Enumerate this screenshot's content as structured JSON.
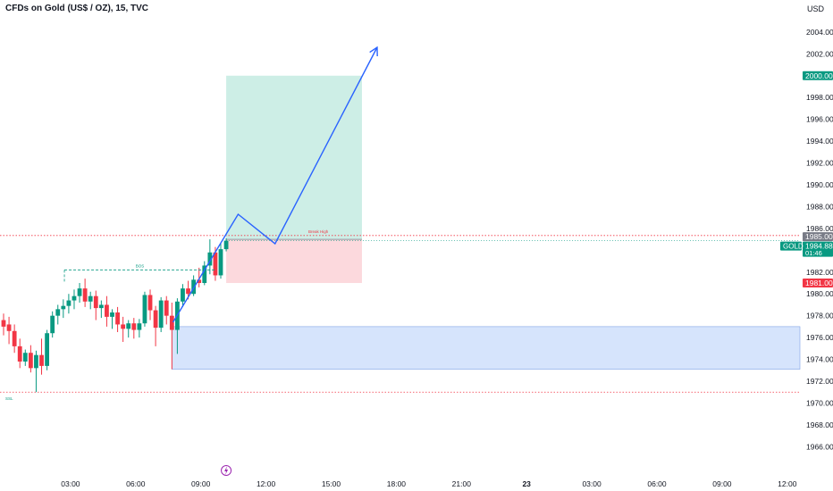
{
  "header": {
    "symbol_title": "CFDs on Gold (US$ / OZ), 15, TVC",
    "currency": "USD"
  },
  "colors": {
    "up": "#089981",
    "down": "#f23645",
    "tp_zone": "#cdeee6",
    "sl_zone": "#fcd9dd",
    "demand_zone": "#d6e4fc",
    "demand_border": "#7fa2e6",
    "arrow": "#2962ff",
    "level_line": "#f23645",
    "bos_line": "#089981"
  },
  "chart_data": {
    "type": "candlestick",
    "instrument": "GOLD",
    "timeframe": "15",
    "y_axis": {
      "ticks": [
        "2004.00",
        "2002.00",
        "2000.00",
        "1998.00",
        "1996.00",
        "1994.00",
        "1992.00",
        "1990.00",
        "1988.00",
        "1986.00",
        "1984.00",
        "1982.00",
        "1980.00",
        "1978.00",
        "1976.00",
        "1974.00",
        "1972.00",
        "1970.00",
        "1968.00",
        "1966.00"
      ],
      "range": [
        1964.8,
        2005.3
      ]
    },
    "x_axis": {
      "ticks": [
        "03:00",
        "06:00",
        "09:00",
        "12:00",
        "15:00",
        "18:00",
        "21:00",
        "23",
        "03:00",
        "06:00",
        "09:00",
        "12:00"
      ],
      "tick_hours": [
        3,
        6,
        9,
        12,
        15,
        18,
        21,
        24,
        27,
        30,
        33,
        36
      ]
    },
    "price_labels": [
      {
        "name": "take-profit",
        "label": "2000.00",
        "value": 2000.0,
        "color": "#089981"
      },
      {
        "name": "entry",
        "label": "1985.00",
        "value": 1985.0,
        "color": "#787b86"
      },
      {
        "name": "current",
        "label": "1984.88",
        "value": 1984.88,
        "color": "#089981",
        "symbol": "GOLD",
        "countdown": "01:46"
      },
      {
        "name": "stop-loss",
        "label": "1981.00",
        "value": 1981.0,
        "color": "#f23645"
      }
    ],
    "annotations": {
      "bos_label": "BOS",
      "bos_level": 1982.2,
      "bos_from_hour": 2.8,
      "bos_to_hour": 9.75,
      "swing_high_label": "Break High",
      "swing_high_level": 1985.35,
      "lower_level": 1971.0,
      "lower_level_label": "SSL",
      "demand_zone": {
        "top": 1977.0,
        "bottom": 1973.1,
        "from_hour": 7.75
      },
      "position": {
        "from_hour": 10.25,
        "to_hour": 16.5,
        "entry": 1985.0,
        "target": 2000.0,
        "stop": 1981.0
      },
      "projection_path": [
        [
          7.8,
          1977.4
        ],
        [
          10.8,
          1987.3
        ],
        [
          12.5,
          1984.6
        ],
        [
          17.2,
          2002.6
        ]
      ],
      "event_marker_hour": 10.25
    },
    "candles": [
      {
        "t": 0.0,
        "o": 1977.6,
        "h": 1978.2,
        "c": 1977.0,
        "l": 1976.2
      },
      {
        "t": 0.25,
        "o": 1977.2,
        "h": 1977.9,
        "c": 1976.6,
        "l": 1975.4
      },
      {
        "t": 0.5,
        "o": 1976.6,
        "h": 1977.2,
        "c": 1975.2,
        "l": 1974.6
      },
      {
        "t": 0.75,
        "o": 1975.2,
        "h": 1975.9,
        "c": 1973.8,
        "l": 1973.2
      },
      {
        "t": 1.0,
        "o": 1973.8,
        "h": 1974.9,
        "c": 1974.6,
        "l": 1973.4
      },
      {
        "t": 1.25,
        "o": 1974.6,
        "h": 1975.3,
        "c": 1973.2,
        "l": 1972.8
      },
      {
        "t": 1.5,
        "o": 1973.2,
        "h": 1974.8,
        "c": 1974.4,
        "l": 1971.0
      },
      {
        "t": 1.75,
        "o": 1974.4,
        "h": 1975.9,
        "c": 1973.4,
        "l": 1972.6
      },
      {
        "t": 2.0,
        "o": 1973.4,
        "h": 1976.7,
        "c": 1976.4,
        "l": 1973.0
      },
      {
        "t": 2.25,
        "o": 1976.4,
        "h": 1978.4,
        "c": 1978.0,
        "l": 1976.0
      },
      {
        "t": 2.5,
        "o": 1978.0,
        "h": 1979.0,
        "c": 1978.6,
        "l": 1977.2
      },
      {
        "t": 2.75,
        "o": 1978.6,
        "h": 1979.5,
        "c": 1978.9,
        "l": 1977.8
      },
      {
        "t": 3.0,
        "o": 1978.9,
        "h": 1980.0,
        "c": 1979.4,
        "l": 1978.2
      },
      {
        "t": 3.25,
        "o": 1979.4,
        "h": 1980.4,
        "c": 1979.8,
        "l": 1978.6
      },
      {
        "t": 3.5,
        "o": 1979.8,
        "h": 1981.0,
        "c": 1980.5,
        "l": 1979.2
      },
      {
        "t": 3.75,
        "o": 1980.5,
        "h": 1981.4,
        "c": 1979.3,
        "l": 1978.8
      },
      {
        "t": 4.0,
        "o": 1979.3,
        "h": 1980.2,
        "c": 1979.8,
        "l": 1978.6
      },
      {
        "t": 4.25,
        "o": 1979.8,
        "h": 1980.3,
        "c": 1978.7,
        "l": 1977.6
      },
      {
        "t": 4.5,
        "o": 1978.7,
        "h": 1979.4,
        "c": 1979.0,
        "l": 1977.8
      },
      {
        "t": 4.75,
        "o": 1979.0,
        "h": 1979.8,
        "c": 1977.9,
        "l": 1977.0
      },
      {
        "t": 5.0,
        "o": 1977.9,
        "h": 1978.6,
        "c": 1978.3,
        "l": 1976.8
      },
      {
        "t": 5.25,
        "o": 1978.3,
        "h": 1978.8,
        "c": 1977.2,
        "l": 1976.5
      },
      {
        "t": 5.5,
        "o": 1977.2,
        "h": 1977.9,
        "c": 1976.8,
        "l": 1975.6
      },
      {
        "t": 5.75,
        "o": 1976.8,
        "h": 1977.6,
        "c": 1977.3,
        "l": 1976.0
      },
      {
        "t": 6.0,
        "o": 1977.3,
        "h": 1977.8,
        "c": 1976.7,
        "l": 1975.9
      },
      {
        "t": 6.25,
        "o": 1976.7,
        "h": 1977.7,
        "c": 1977.3,
        "l": 1976.0
      },
      {
        "t": 6.5,
        "o": 1977.3,
        "h": 1980.2,
        "c": 1979.9,
        "l": 1977.0
      },
      {
        "t": 6.75,
        "o": 1979.9,
        "h": 1980.4,
        "c": 1978.5,
        "l": 1977.6
      },
      {
        "t": 7.0,
        "o": 1978.5,
        "h": 1978.9,
        "c": 1976.9,
        "l": 1975.2
      },
      {
        "t": 7.25,
        "o": 1976.9,
        "h": 1979.7,
        "c": 1979.4,
        "l": 1976.5
      },
      {
        "t": 7.5,
        "o": 1979.4,
        "h": 1979.8,
        "c": 1978.0,
        "l": 1977.2
      },
      {
        "t": 7.75,
        "o": 1978.0,
        "h": 1979.2,
        "c": 1976.7,
        "l": 1973.1
      },
      {
        "t": 8.0,
        "o": 1976.7,
        "h": 1979.6,
        "c": 1979.3,
        "l": 1974.5
      },
      {
        "t": 8.25,
        "o": 1979.3,
        "h": 1980.9,
        "c": 1980.5,
        "l": 1978.8
      },
      {
        "t": 8.5,
        "o": 1980.5,
        "h": 1981.2,
        "c": 1980.0,
        "l": 1979.5
      },
      {
        "t": 8.75,
        "o": 1980.0,
        "h": 1981.7,
        "c": 1981.3,
        "l": 1979.8
      },
      {
        "t": 9.0,
        "o": 1981.3,
        "h": 1982.4,
        "c": 1981.0,
        "l": 1980.6
      },
      {
        "t": 9.25,
        "o": 1981.0,
        "h": 1983.0,
        "c": 1982.6,
        "l": 1980.8
      },
      {
        "t": 9.5,
        "o": 1982.6,
        "h": 1985.0,
        "c": 1983.8,
        "l": 1981.8
      },
      {
        "t": 9.75,
        "o": 1983.8,
        "h": 1984.3,
        "c": 1981.7,
        "l": 1981.2
      },
      {
        "t": 10.0,
        "o": 1981.7,
        "h": 1984.6,
        "c": 1984.1,
        "l": 1981.4
      },
      {
        "t": 10.25,
        "o": 1984.1,
        "h": 1985.1,
        "c": 1984.88,
        "l": 1983.9
      }
    ]
  }
}
